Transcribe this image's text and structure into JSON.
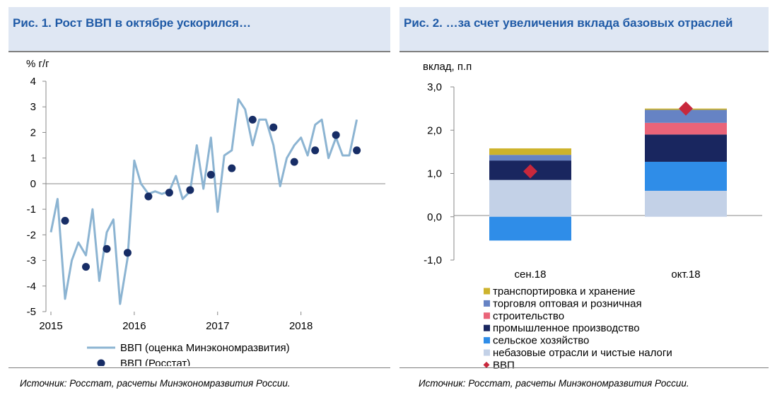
{
  "chart1": {
    "title": "Рис. 1. Рост ВВП в октябре ускорился…",
    "unit_label": "% г/г",
    "source": "Источник: Росстат, расчеты Минэкономразвития России.",
    "chart_data": {
      "type": "line",
      "ylim": [
        -5,
        4
      ],
      "yticks": [
        "4",
        "3",
        "2",
        "1",
        "0",
        "-1",
        "-2",
        "-3",
        "-4",
        "-5"
      ],
      "xticks": [
        "2015",
        "2016",
        "2017",
        "2018"
      ],
      "x_range": [
        2015.0,
        2018.97
      ],
      "series": [
        {
          "name": "ВВП (оценка Минэкономразвития)",
          "style": "line",
          "color": "#8cb4d2",
          "x": [
            2015.0,
            2015.08,
            2015.17,
            2015.25,
            2015.33,
            2015.42,
            2015.5,
            2015.58,
            2015.67,
            2015.75,
            2015.83,
            2015.92,
            2016.0,
            2016.08,
            2016.17,
            2016.25,
            2016.33,
            2016.42,
            2016.5,
            2016.58,
            2016.67,
            2016.75,
            2016.83,
            2016.92,
            2017.0,
            2017.08,
            2017.17,
            2017.25,
            2017.33,
            2017.42,
            2017.5,
            2017.58,
            2017.67,
            2017.75,
            2017.83,
            2017.92,
            2018.0,
            2018.08,
            2018.17,
            2018.25,
            2018.33,
            2018.42,
            2018.5,
            2018.58,
            2018.67,
            2018.75,
            2018.83,
            2018.92
          ],
          "values": [
            -1.9,
            -0.6,
            -4.5,
            -3.0,
            -2.3,
            -2.8,
            -1.0,
            -3.8,
            -1.9,
            -1.4,
            -4.7,
            -2.9,
            0.9,
            0.0,
            -0.4,
            -0.3,
            -0.4,
            -0.3,
            0.3,
            -0.6,
            -0.3,
            1.5,
            -0.2,
            1.8,
            -1.1,
            1.1,
            1.3,
            3.3,
            2.9,
            1.5,
            2.5,
            2.5,
            1.5,
            -0.1,
            1.0,
            1.5,
            1.8,
            1.1,
            2.3,
            2.5,
            1.0,
            1.8,
            1.1,
            1.1,
            2.5,
            null,
            null,
            null
          ]
        },
        {
          "name": "ВВП (Росстат)",
          "style": "marker",
          "color": "#172d66",
          "x": [
            2015.17,
            2015.42,
            2015.67,
            2015.92,
            2016.17,
            2016.42,
            2016.67,
            2016.92,
            2017.17,
            2017.42,
            2017.67,
            2017.92,
            2018.17,
            2018.42,
            2018.67
          ],
          "values": [
            -1.45,
            -3.25,
            -2.55,
            -2.7,
            -0.5,
            -0.35,
            -0.25,
            0.35,
            0.6,
            2.5,
            2.2,
            0.85,
            1.3,
            1.9,
            1.3
          ]
        }
      ]
    }
  },
  "chart2": {
    "title": "Рис. 2. …за счет увеличения вклада базовых отраслей",
    "unit_label": "вклад, п.п",
    "source": "Источник: Росстат, расчеты Минэкономразвития России.",
    "chart_data": {
      "type": "bar",
      "stacked": true,
      "categories": [
        "сен.18",
        "окт.18"
      ],
      "ylim": [
        -1.0,
        3.0
      ],
      "yticks": [
        "3,0",
        "2,0",
        "1,0",
        "0,0",
        "-1,0"
      ],
      "series": [
        {
          "name": "небазовые отрасли и чистые налоги",
          "color": "#c3d1e7",
          "values": [
            0.85,
            0.6
          ]
        },
        {
          "name": "сельское хозяйство",
          "color": "#2f8de8",
          "values": [
            -0.55,
            0.67
          ]
        },
        {
          "name": "промышленное производство",
          "color": "#19265f",
          "values": [
            0.45,
            0.63
          ]
        },
        {
          "name": "строительство",
          "color": "#ea6479",
          "values": [
            0.0,
            0.27
          ]
        },
        {
          "name": "торговля оптовая и розничная",
          "color": "#6683c4",
          "values": [
            0.13,
            0.3
          ]
        },
        {
          "name": "транспортировка и хранение",
          "color": "#cdb32d",
          "values": [
            0.15,
            0.03
          ]
        }
      ],
      "markers": {
        "name": "ВВП",
        "color": "#c8283c",
        "values": [
          1.05,
          2.5
        ]
      },
      "legend": [
        {
          "label": "транспортировка и хранение",
          "color": "#cdb32d",
          "kind": "square"
        },
        {
          "label": "торговля оптовая и розничная",
          "color": "#6683c4",
          "kind": "square"
        },
        {
          "label": "строительство",
          "color": "#ea6479",
          "kind": "square"
        },
        {
          "label": "промышленное производство",
          "color": "#19265f",
          "kind": "square"
        },
        {
          "label": "сельское хозяйство",
          "color": "#2f8de8",
          "kind": "square"
        },
        {
          "label": "небазовые отрасли и чистые налоги",
          "color": "#c3d1e7",
          "kind": "square"
        },
        {
          "label": "ВВП",
          "color": "#c8283c",
          "kind": "diamond"
        }
      ]
    }
  }
}
